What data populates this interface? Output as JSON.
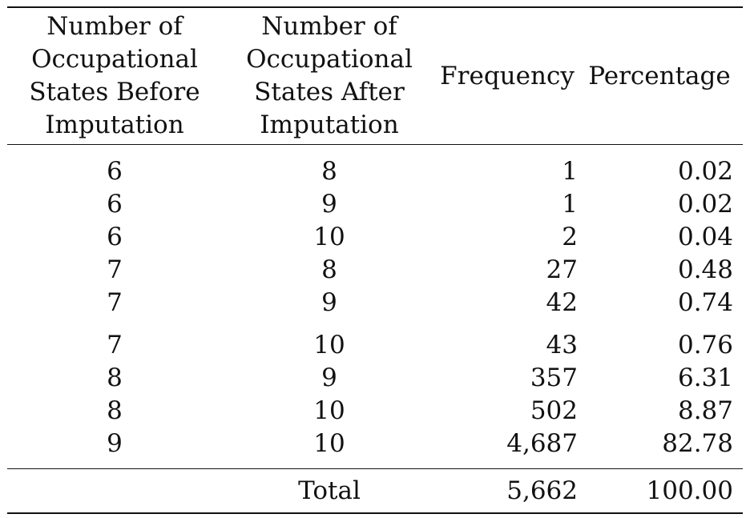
{
  "table": {
    "headers": [
      [
        "Number of",
        "Occupational",
        "States Before",
        "Imputation"
      ],
      [
        "Number of",
        "Occupational",
        "States After",
        "Imputation"
      ],
      [
        "Frequency"
      ],
      [
        "Percentage"
      ]
    ],
    "rows": [
      {
        "before": "6",
        "after": "8",
        "frequency": "1",
        "percentage": "0.02"
      },
      {
        "before": "6",
        "after": "9",
        "frequency": "1",
        "percentage": "0.02"
      },
      {
        "before": "6",
        "after": "10",
        "frequency": "2",
        "percentage": "0.04"
      },
      {
        "before": "7",
        "after": "8",
        "frequency": "27",
        "percentage": "0.48"
      },
      {
        "before": "7",
        "after": "9",
        "frequency": "42",
        "percentage": "0.74"
      },
      {
        "before": "7",
        "after": "10",
        "frequency": "43",
        "percentage": "0.76"
      },
      {
        "before": "8",
        "after": "9",
        "frequency": "357",
        "percentage": "6.31"
      },
      {
        "before": "8",
        "after": "10",
        "frequency": "502",
        "percentage": "8.87"
      },
      {
        "before": "9",
        "after": "10",
        "frequency": "4,687",
        "percentage": "82.78"
      }
    ],
    "total": {
      "label": "Total",
      "frequency": "5,662",
      "percentage": "100.00"
    }
  }
}
